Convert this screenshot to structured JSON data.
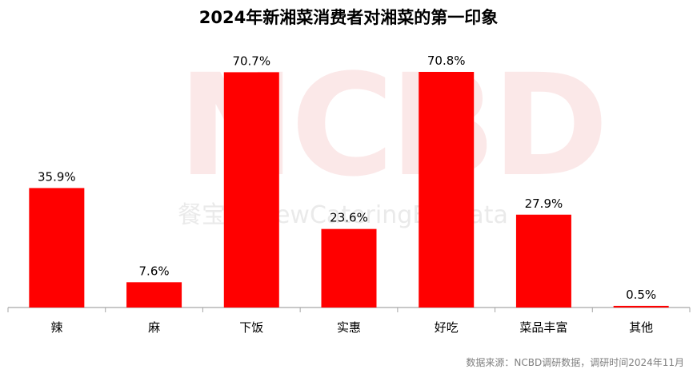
{
  "title": "2024年新湘菜消费者对湘菜的第一印象",
  "watermark": {
    "main": "NCBD",
    "sub": "餐宝典 NewCateringBigData"
  },
  "source": "数据来源：NCBD调研数据，调研时间2024年11月",
  "colors": {
    "bar": "#ff0000",
    "axis": "#a6a6a6",
    "text": "#000000"
  },
  "chart_data": {
    "type": "bar",
    "title": "2024年新湘菜消费者对湘菜的第一印象",
    "categories": [
      "辣",
      "麻",
      "下饭",
      "实惠",
      "好吃",
      "菜品丰富",
      "其他"
    ],
    "values": [
      35.9,
      7.6,
      70.7,
      23.6,
      70.8,
      27.9,
      0.5
    ],
    "value_labels": [
      "35.9%",
      "7.6%",
      "70.7%",
      "23.6%",
      "70.8%",
      "27.9%",
      "0.5%"
    ],
    "xlabel": "",
    "ylabel": "",
    "ylim": [
      0,
      70.8
    ],
    "grid": false,
    "legend": "none"
  }
}
